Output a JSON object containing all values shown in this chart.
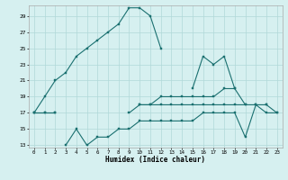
{
  "xlabel": "Humidex (Indice chaleur)",
  "x_values": [
    0,
    1,
    2,
    3,
    4,
    5,
    6,
    7,
    8,
    9,
    10,
    11,
    12,
    13,
    14,
    15,
    16,
    17,
    18,
    19,
    20,
    21,
    22,
    23
  ],
  "line1": [
    17,
    19,
    21,
    22,
    24,
    25,
    26,
    27,
    28,
    30,
    30,
    29,
    25,
    null,
    null,
    20,
    24,
    23,
    24,
    20,
    null,
    null,
    null,
    null
  ],
  "line2": [
    17,
    17,
    17,
    null,
    null,
    null,
    null,
    null,
    null,
    17,
    18,
    18,
    19,
    19,
    19,
    19,
    19,
    19,
    20,
    20,
    18,
    null,
    18,
    null
  ],
  "line3": [
    17,
    17,
    17,
    null,
    null,
    null,
    null,
    null,
    null,
    null,
    18,
    18,
    18,
    18,
    18,
    18,
    18,
    18,
    18,
    18,
    18,
    18,
    18,
    17
  ],
  "line4": [
    null,
    null,
    null,
    13,
    15,
    13,
    14,
    14,
    15,
    15,
    16,
    16,
    16,
    16,
    16,
    16,
    17,
    17,
    17,
    17,
    14,
    18,
    17,
    17
  ],
  "color": "#1a7070",
  "bg_color": "#d6f0f0",
  "grid_color": "#b0d8d8",
  "ylim": [
    13,
    30
  ],
  "yticks": [
    13,
    15,
    17,
    19,
    21,
    23,
    25,
    27,
    29
  ],
  "xlim": [
    -0.5,
    23.5
  ]
}
